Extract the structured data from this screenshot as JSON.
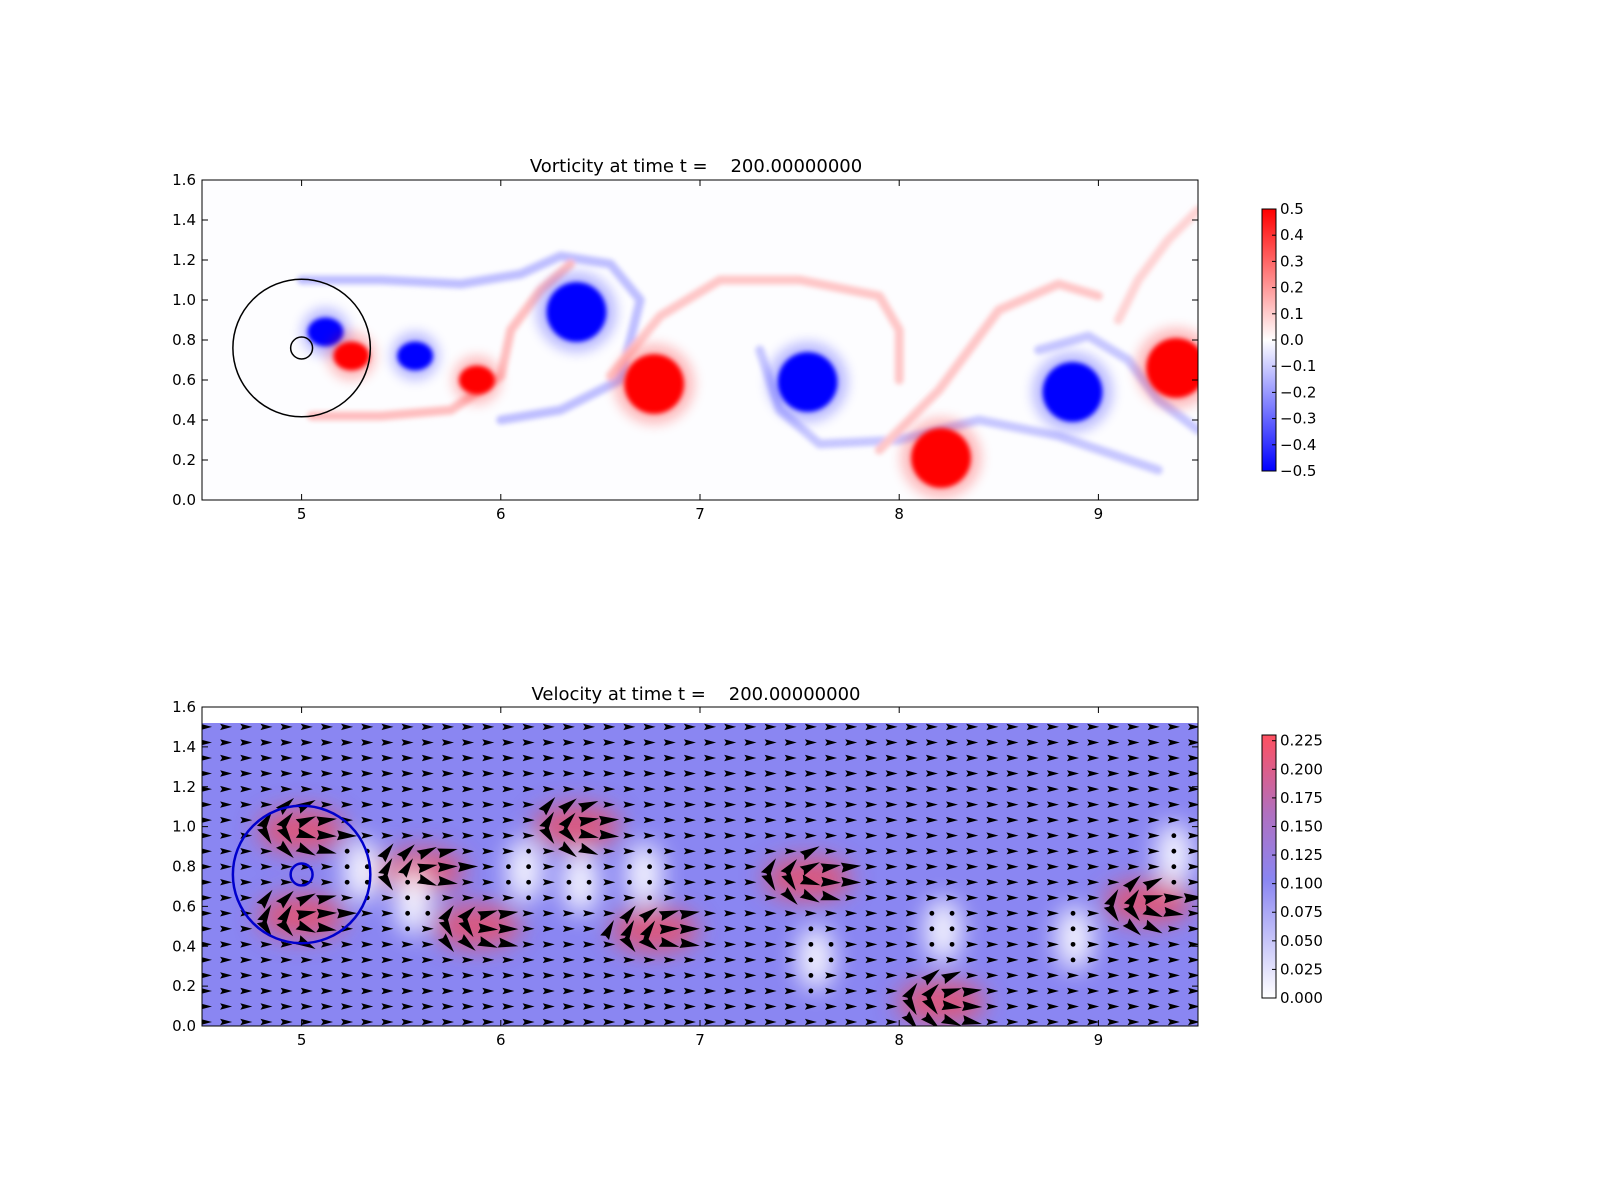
{
  "chart_data": [
    {
      "type": "heatmap",
      "title": "Vorticity at time t =    200.00000000",
      "xlabel": "",
      "ylabel": "",
      "xlim": [
        4.5,
        9.5
      ],
      "ylim": [
        0.0,
        1.6
      ],
      "xticks": [
        "5",
        "6",
        "7",
        "8",
        "9"
      ],
      "yticks": [
        "0.0",
        "0.2",
        "0.4",
        "0.6",
        "0.8",
        "1.0",
        "1.2",
        "1.4",
        "1.6"
      ],
      "grid": false,
      "colormap": {
        "min_color": "#0000ff",
        "mid_color": "#ffffff",
        "max_color": "#ff0000",
        "range": [
          -0.5,
          0.5
        ]
      },
      "colorbar_ticks": [
        "0.5",
        "0.4",
        "0.3",
        "0.2",
        "0.1",
        "0.0",
        "−0.1",
        "−0.2",
        "−0.3",
        "−0.4",
        "−0.5"
      ],
      "outline_circles": [
        {
          "cx": 5.0,
          "cy": 0.76,
          "r": 0.345,
          "color": "#000000"
        },
        {
          "cx": 5.0,
          "cy": 0.76,
          "r": 0.055,
          "color": "#000000"
        }
      ],
      "vortices": [
        {
          "x": 5.12,
          "y": 0.84,
          "w": -0.5
        },
        {
          "x": 5.25,
          "y": 0.72,
          "w": 0.5
        },
        {
          "x": 5.57,
          "y": 0.72,
          "w": -0.5
        },
        {
          "x": 5.88,
          "y": 0.6,
          "w": 0.5
        },
        {
          "x": 6.38,
          "y": 0.94,
          "w": -0.5
        },
        {
          "x": 6.77,
          "y": 0.58,
          "w": 0.5
        },
        {
          "x": 7.54,
          "y": 0.59,
          "w": -0.5
        },
        {
          "x": 8.21,
          "y": 0.21,
          "w": 0.5
        },
        {
          "x": 8.87,
          "y": 0.54,
          "w": -0.5
        },
        {
          "x": 9.39,
          "y": 0.66,
          "w": 0.5
        }
      ]
    },
    {
      "type": "heatmap",
      "title": "Velocity at time t =    200.00000000",
      "xlabel": "",
      "ylabel": "",
      "xlim": [
        4.5,
        9.5
      ],
      "ylim": [
        0.0,
        1.6
      ],
      "xticks": [
        "5",
        "6",
        "7",
        "8",
        "9"
      ],
      "yticks": [
        "0.0",
        "0.2",
        "0.4",
        "0.6",
        "0.8",
        "1.0",
        "1.2",
        "1.4",
        "1.6"
      ],
      "grid": false,
      "overlay": "quiver",
      "data_top": 1.52,
      "colormap": {
        "min_color": "#ffffff",
        "mid_color": "#8080ff",
        "max_color": "#ff5050",
        "range": [
          0.0,
          0.23
        ]
      },
      "colorbar_ticks": [
        "0.225",
        "0.200",
        "0.175",
        "0.150",
        "0.125",
        "0.100",
        "0.075",
        "0.050",
        "0.025",
        "0.000"
      ],
      "outline_circles": [
        {
          "cx": 5.0,
          "cy": 0.76,
          "r": 0.345,
          "color": "#0000cc"
        },
        {
          "cx": 5.0,
          "cy": 0.76,
          "r": 0.055,
          "color": "#0000cc"
        }
      ],
      "fast_regions": [
        {
          "x": 6.38,
          "y": 1.0,
          "s": 0.22
        },
        {
          "x": 7.54,
          "y": 0.74,
          "s": 0.23
        },
        {
          "x": 8.21,
          "y": 0.12,
          "s": 0.23
        },
        {
          "x": 5.88,
          "y": 0.5,
          "s": 0.21
        },
        {
          "x": 6.77,
          "y": 0.48,
          "s": 0.2
        },
        {
          "x": 9.25,
          "y": 0.62,
          "s": 0.22
        },
        {
          "x": 5.0,
          "y": 0.98,
          "s": 0.17
        },
        {
          "x": 5.0,
          "y": 0.55,
          "s": 0.17
        },
        {
          "x": 5.6,
          "y": 0.78,
          "s": 0.17
        }
      ],
      "slow_regions": [
        {
          "x": 5.3,
          "y": 0.78
        },
        {
          "x": 6.12,
          "y": 0.78
        },
        {
          "x": 6.4,
          "y": 0.72
        },
        {
          "x": 6.72,
          "y": 0.76
        },
        {
          "x": 7.58,
          "y": 0.34
        },
        {
          "x": 8.22,
          "y": 0.48
        },
        {
          "x": 8.88,
          "y": 0.44
        },
        {
          "x": 9.38,
          "y": 0.86
        },
        {
          "x": 5.56,
          "y": 0.62
        }
      ]
    }
  ]
}
